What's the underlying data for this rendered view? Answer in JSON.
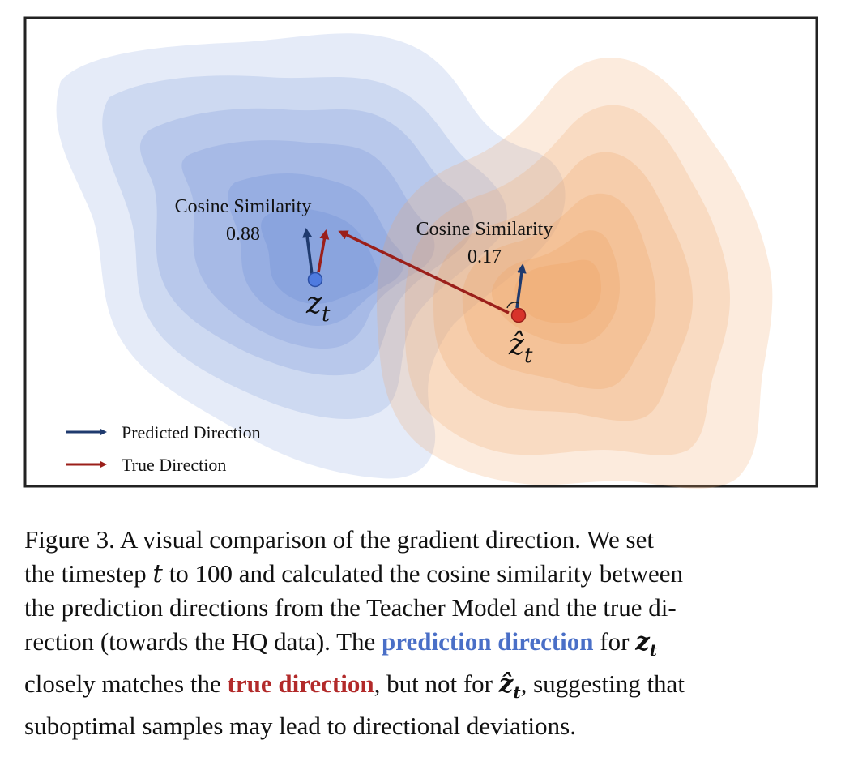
{
  "figure": {
    "colors": {
      "blue_region": "#6f8fd6",
      "orange_region": "#f0a466",
      "predicted_arrow": "#1f3a6e",
      "true_arrow": "#9b1f1a",
      "zt_point": "#4f7be0",
      "zhat_point": "#d8332b",
      "frame": "#222222"
    },
    "labels": {
      "cos_left_title": "Cosine Similarity",
      "cos_left_value": "0.88",
      "cos_right_title": "Cosine Similarity",
      "cos_right_value": "0.17",
      "zt_symbol": "z",
      "zt_subscript": "t",
      "zhat_symbol": "ẑ",
      "zhat_subscript": "t"
    },
    "legend": {
      "predicted": "Predicted Direction",
      "true": "True Direction"
    }
  },
  "caption": {
    "line1": "Figure 3.  A visual comparison of the gradient direction.  We set",
    "line2_a": "the timestep ",
    "line2_t": "t",
    "line2_b": " to 100 and calculated the cosine similarity between",
    "line3": "the prediction directions from the Teacher Model and the true di-",
    "line4_a": "rection (towards the HQ data).  The ",
    "line4_hl": "prediction direction",
    "line4_b": " for ",
    "line4_z": "z",
    "line4_sub": "t",
    "line5_a": "closely matches the ",
    "line5_hl": "true direction",
    "line5_b": ", but not for ",
    "line5_z": "ẑ",
    "line5_sub": "t",
    "line5_c": ", suggesting that",
    "line6": "suboptimal samples may lead to directional deviations."
  }
}
